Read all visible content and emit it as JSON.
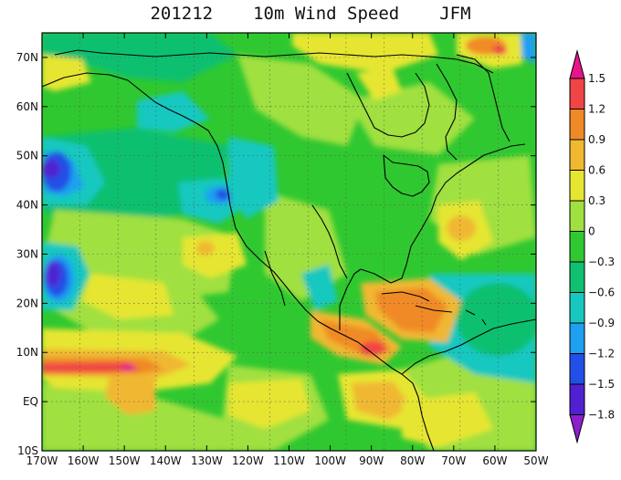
{
  "header": {
    "date": "201212",
    "variable": "10m Wind Speed",
    "season": "JFM"
  },
  "map": {
    "lon_range": [
      -170,
      -50
    ],
    "lat_range": [
      -10,
      75
    ],
    "lon_ticks": [
      "170W",
      "160W",
      "150W",
      "140W",
      "130W",
      "120W",
      "110W",
      "100W",
      "90W",
      "80W",
      "70W",
      "60W",
      "50W"
    ],
    "lat_ticks": [
      "10S",
      "EQ",
      "10N",
      "20N",
      "30N",
      "40N",
      "50N",
      "60N",
      "70N"
    ]
  },
  "colorbar": {
    "labels": [
      "1.5",
      "1.2",
      "0.9",
      "0.6",
      "0.3",
      "0",
      "−0.3",
      "−0.6",
      "−0.9",
      "−1.2",
      "−1.5",
      "−1.8"
    ],
    "colors": [
      "#e8148c",
      "#f04545",
      "#f08a28",
      "#f0b830",
      "#e6e632",
      "#a0e040",
      "#30c830",
      "#10c070",
      "#18c8c0",
      "#1ea0f0",
      "#2250e6",
      "#5020d2",
      "#8c1ecc"
    ]
  },
  "colors": {
    "base": "#30c830",
    "coastline": "#000000",
    "grid": "#555555"
  }
}
